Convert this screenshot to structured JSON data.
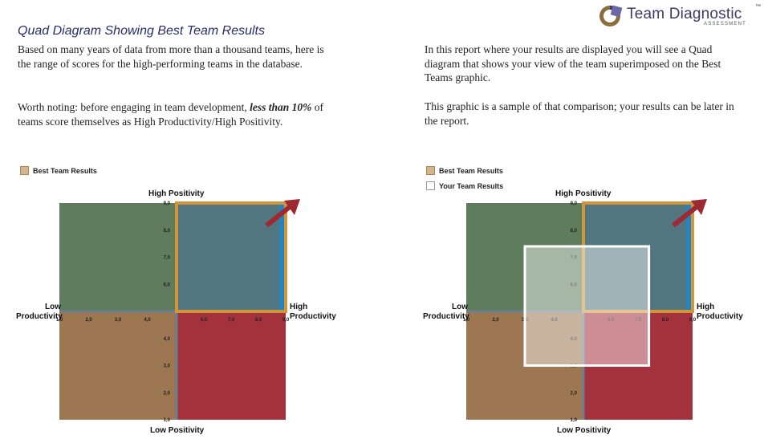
{
  "logo": {
    "name": "Team Diagnostic",
    "tm": "™",
    "subtitle": "ASSESSMENT"
  },
  "left": {
    "title": "Quad Diagram Showing Best Team Results",
    "para1": "Based on many years of data from more than a thousand teams, here is the range of scores for the high-performing teams in the database.",
    "para2_prefix": "Worth noting: before engaging in team development, ",
    "para2_emph": "less than 10%",
    "para2_suffix": " of teams score themselves as High Productivity/High Positivity."
  },
  "right": {
    "para1": "In this report where your results are displayed you will see a Quad diagram that shows your view of the team superimposed on the Best Teams graphic.",
    "para2": "This graphic is a sample of that comparison; your results can be later in the report."
  },
  "legend": {
    "best": "Best Team Results",
    "your": "Your Team Results"
  },
  "axis_labels": {
    "top": "High Positivity",
    "bottom": "Low Positivity",
    "left_1": "Low",
    "left_2": "Productivity",
    "right_1": "High",
    "right_2": "Productivity"
  },
  "colors": {
    "q_top_left": "#5f7c5c",
    "q_top_right": "#52767f",
    "q_bottom_left": "#9d7751",
    "q_bottom_right": "#a3323c",
    "blue_bar": "#2384c0",
    "axis": "#6b7f90",
    "best_outline": "#d1963c",
    "your_outline": "#ffffff",
    "arrow": "#9d2a33"
  },
  "chart_data": [
    {
      "type": "quad",
      "x_ticks": [
        "1,0",
        "2,0",
        "3,0",
        "4,0",
        "6,0",
        "7,0",
        "8,0",
        "9,0"
      ],
      "y_ticks": [
        "1,0",
        "2,0",
        "3,0",
        "4,0",
        "6,0",
        "7,0",
        "8,0",
        "9,0"
      ],
      "xlim": [
        1,
        9
      ],
      "ylim": [
        1,
        9
      ],
      "best_team_region": {
        "x": [
          5.0,
          9.0
        ],
        "y": [
          5.0,
          9.0
        ]
      }
    },
    {
      "type": "quad",
      "x_ticks": [
        "1,0",
        "2,0",
        "3,0",
        "4,0",
        "6,0",
        "7,0",
        "8,0",
        "9,0"
      ],
      "y_ticks": [
        "1,0",
        "2,0",
        "3,0",
        "4,0",
        "6,0",
        "7,0",
        "8,0",
        "9,0"
      ],
      "xlim": [
        1,
        9
      ],
      "ylim": [
        1,
        9
      ],
      "best_team_region": {
        "x": [
          5.0,
          9.0
        ],
        "y": [
          5.0,
          9.0
        ]
      },
      "your_team_region": {
        "x": [
          3.0,
          7.4
        ],
        "y": [
          3.0,
          7.4
        ]
      }
    }
  ]
}
